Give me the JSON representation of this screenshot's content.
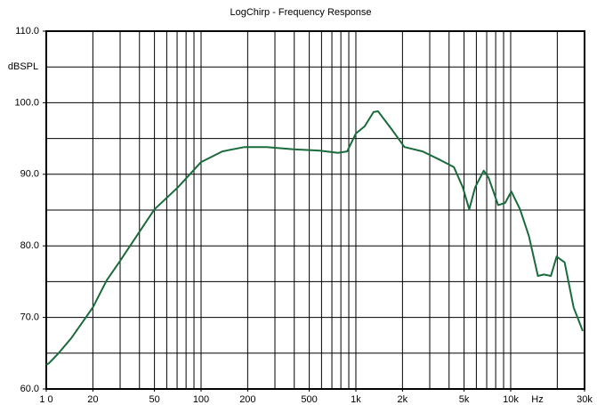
{
  "chart_data": {
    "type": "line",
    "title": "LogChirp - Frequency Response",
    "y_label": "dBSPL",
    "x_label": "Hz",
    "xscale": "log",
    "xlim": [
      10,
      30000
    ],
    "ylim": [
      60,
      110
    ],
    "xticks": [
      {
        "value": 10,
        "label": "1 0"
      },
      20,
      50,
      100,
      200,
      500,
      {
        "value": 1000,
        "label": "1k"
      },
      {
        "value": 2000,
        "label": "2k"
      },
      {
        "value": 5000,
        "label": "5k"
      },
      {
        "value": 10000,
        "label": "10k"
      },
      {
        "value": 30000,
        "label": "30k"
      }
    ],
    "xgrid": [
      10,
      20,
      30,
      40,
      50,
      60,
      70,
      80,
      90,
      100,
      200,
      300,
      400,
      500,
      600,
      700,
      800,
      900,
      1000,
      2000,
      3000,
      4000,
      5000,
      6000,
      7000,
      8000,
      9000,
      10000,
      20000,
      30000
    ],
    "yticks": [
      {
        "value": 60,
        "label": "60.0"
      },
      {
        "value": 70,
        "label": "70.0"
      },
      {
        "value": 80,
        "label": "80.0"
      },
      {
        "value": 90,
        "label": "90.0"
      },
      {
        "value": 100,
        "label": "100.0"
      },
      {
        "value": 110,
        "label": "110.0"
      }
    ],
    "ygrid": [
      60,
      65,
      70,
      75,
      80,
      85,
      90,
      95,
      100,
      105,
      110
    ],
    "grid": true,
    "series": [
      {
        "name": "Frequency Response",
        "color": "#1a6b3c",
        "x": [
          10,
          10.4,
          11.9,
          14.5,
          20,
          24.6,
          30,
          39,
          50,
          71,
          100,
          137,
          191,
          266,
          396,
          587,
          768,
          879,
          1000,
          1140,
          1300,
          1390,
          1700,
          2060,
          2700,
          3500,
          4300,
          4900,
          5400,
          5900,
          6700,
          7200,
          8300,
          9200,
          10100,
          11500,
          13100,
          15000,
          16400,
          18200,
          19800,
          22300,
          25500,
          29200
        ],
        "values": [
          63.4,
          63.6,
          64.9,
          67.1,
          71.4,
          75.2,
          77.9,
          81.6,
          85.1,
          88.2,
          91.7,
          93.2,
          93.8,
          93.8,
          93.5,
          93.3,
          93.0,
          93.2,
          95.7,
          96.7,
          98.7,
          98.8,
          96.3,
          93.8,
          93.2,
          92.0,
          91.0,
          88.2,
          85.1,
          88.2,
          90.5,
          89.5,
          85.7,
          86.0,
          87.6,
          85.1,
          81.4,
          75.8,
          76.0,
          75.8,
          78.5,
          77.7,
          71.4,
          68.1
        ]
      }
    ]
  }
}
